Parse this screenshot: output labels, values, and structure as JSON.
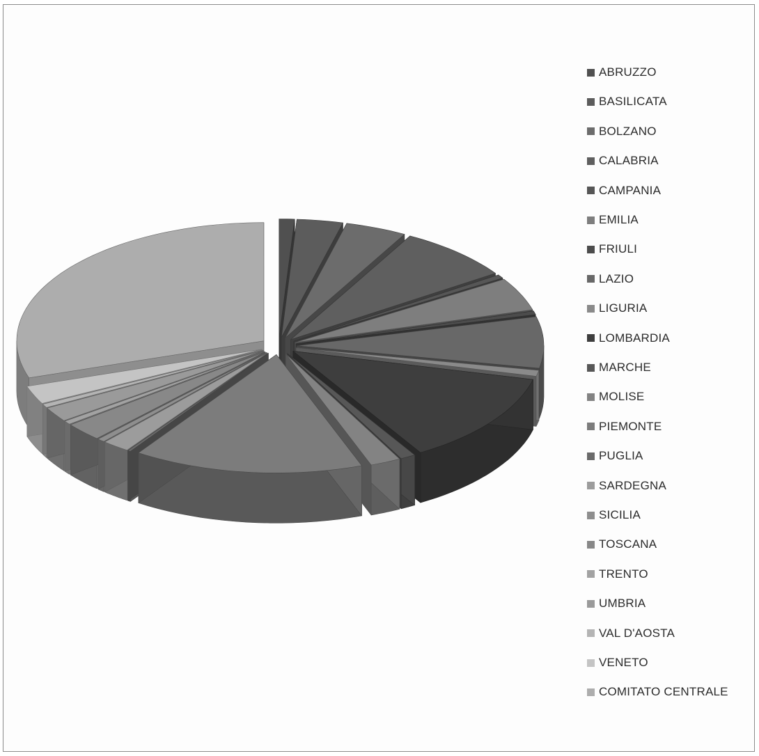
{
  "chart_data": {
    "type": "pie",
    "style": "3d-exploded",
    "title": "",
    "legend_position": "right",
    "categories": [
      "ABRUZZO",
      "BASILICATA",
      "BOLZANO",
      "CALABRIA",
      "CAMPANIA",
      "EMILIA",
      "FRIULI",
      "LAZIO",
      "LIGURIA",
      "LOMBARDIA",
      "MARCHE",
      "MOLISE",
      "PIEMONTE",
      "PUGLIA",
      "SARDEGNA",
      "SICILIA",
      "TOSCANA",
      "TRENTO",
      "UMBRIA",
      "VAL D'AOSTA",
      "VENETO",
      "COMITATO CENTRALE"
    ],
    "values": [
      1.0,
      3.0,
      4.0,
      7.5,
      0.5,
      4.5,
      0.5,
      7.0,
      0.8,
      12.5,
      1.0,
      2.0,
      15.0,
      0.2,
      1.8,
      0.5,
      2.5,
      0.5,
      2.0,
      0.5,
      2.5,
      30.0
    ],
    "colors": [
      "#505050",
      "#5c5c5c",
      "#6c6c6c",
      "#5f5f5f",
      "#565656",
      "#7e7e7e",
      "#4c4c4c",
      "#686868",
      "#8a8a8a",
      "#3e3e3e",
      "#575757",
      "#838383",
      "#7c7c7c",
      "#6a6a6a",
      "#9c9c9c",
      "#8e8e8e",
      "#888888",
      "#a2a2a2",
      "#9a9a9a",
      "#b4b4b4",
      "#c4c4c4",
      "#adadad"
    ]
  }
}
